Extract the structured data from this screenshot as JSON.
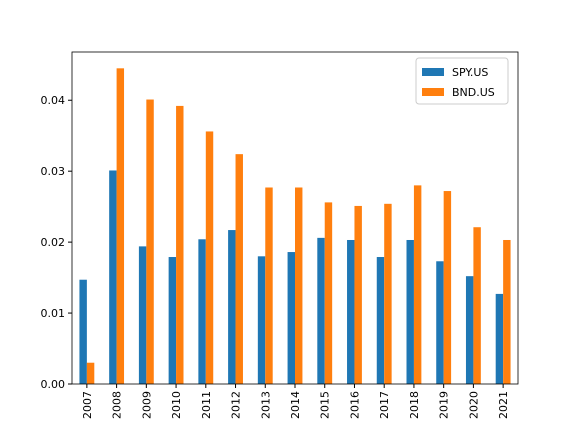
{
  "chart_data": {
    "type": "bar",
    "categories": [
      "2007",
      "2008",
      "2009",
      "2010",
      "2011",
      "2012",
      "2013",
      "2014",
      "2015",
      "2016",
      "2017",
      "2018",
      "2019",
      "2020",
      "2021"
    ],
    "series": [
      {
        "name": "SPY.US",
        "color": "#1f77b4",
        "values": [
          0.0147,
          0.0301,
          0.0194,
          0.0179,
          0.0204,
          0.0217,
          0.018,
          0.0186,
          0.0206,
          0.0203,
          0.0179,
          0.0203,
          0.0173,
          0.0152,
          0.0127
        ]
      },
      {
        "name": "BND.US",
        "color": "#ff7f0e",
        "values": [
          0.003,
          0.0445,
          0.0401,
          0.0392,
          0.0356,
          0.0324,
          0.0277,
          0.0277,
          0.0256,
          0.0251,
          0.0254,
          0.028,
          0.0272,
          0.0221,
          0.0203
        ]
      }
    ],
    "ylim": [
      0,
      0.0468
    ],
    "yticks": [
      {
        "value": 0,
        "label": "0.00"
      },
      {
        "value": 0.01,
        "label": "0.01"
      },
      {
        "value": 0.02,
        "label": "0.02"
      },
      {
        "value": 0.03,
        "label": "0.03"
      },
      {
        "value": 0.04,
        "label": "0.04"
      }
    ],
    "legend": "upper right"
  }
}
